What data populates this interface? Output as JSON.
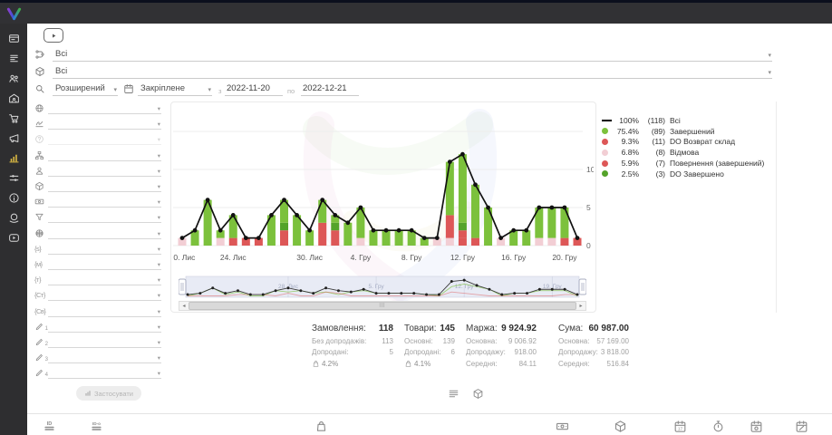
{
  "colors": {
    "green": "#7cc13c",
    "dark_green": "#54a32a",
    "red": "#dd5757",
    "pink": "#f2ced4",
    "line": "#000000",
    "sidebar_active": "#d9b843",
    "navigator_bg": "#e8ebf5"
  },
  "sidebar": {
    "items": [
      {
        "name": "dashboard",
        "icon": "browser-card",
        "active": false
      },
      {
        "name": "orders",
        "icon": "order-list",
        "active": false
      },
      {
        "name": "customers",
        "icon": "users",
        "active": false
      },
      {
        "name": "warehouse",
        "icon": "warehouse",
        "active": false
      },
      {
        "name": "purchases",
        "icon": "trolley",
        "active": false
      },
      {
        "name": "marketing",
        "icon": "megaphone",
        "active": false
      },
      {
        "name": "statistics",
        "icon": "stats",
        "active": true
      },
      {
        "name": "settings",
        "icon": "sliders",
        "active": false
      },
      {
        "name": "info",
        "icon": "info",
        "active": false
      },
      {
        "name": "network",
        "icon": "globe-hand",
        "active": false
      },
      {
        "name": "tutorials",
        "icon": "video",
        "active": false
      }
    ]
  },
  "toolbar": {
    "filters": [
      {
        "icon": "flow",
        "value": "Всі"
      },
      {
        "icon": "cube",
        "value": "Всі"
      }
    ],
    "search_mode": {
      "icon": "search",
      "value": "Розширений"
    },
    "period": {
      "icon": "calendar",
      "value": "Закріплене"
    },
    "date_from_label": "з",
    "date_from": "2022-11-20",
    "date_to_label": "по",
    "date_to": "2022-12-21"
  },
  "filter_panel": {
    "rows": [
      {
        "icon": "globe"
      },
      {
        "icon": "signature"
      },
      {
        "icon": "question",
        "disabled": true
      },
      {
        "icon": "sitemap"
      },
      {
        "icon": "person"
      },
      {
        "icon": "cube"
      },
      {
        "icon": "banknote"
      },
      {
        "icon": "funnel"
      },
      {
        "icon": "globe-grid"
      },
      {
        "glyph": "{s}"
      },
      {
        "glyph": "{м}"
      },
      {
        "glyph": "{т}"
      },
      {
        "glyph": "{Ст}"
      },
      {
        "glyph": "{Св}"
      },
      {
        "icon": "pencil",
        "sub": "1"
      },
      {
        "icon": "pencil",
        "sub": "2"
      },
      {
        "icon": "pencil",
        "sub": "3"
      },
      {
        "icon": "pencil",
        "sub": "4"
      }
    ],
    "apply_label": "Застосувати"
  },
  "chart_data": {
    "type": "line+bar-stacked (stock chart with navigator)",
    "x_range": [
      "2022-11-20",
      "2022-12-21"
    ],
    "dates": [
      "2022-11-20",
      "2022-11-21",
      "2022-11-22",
      "2022-11-23",
      "2022-11-24",
      "2022-11-25",
      "2022-11-26",
      "2022-11-27",
      "2022-11-28",
      "2022-11-29",
      "2022-11-30",
      "2022-12-01",
      "2022-12-02",
      "2022-12-03",
      "2022-12-04",
      "2022-12-05",
      "2022-12-06",
      "2022-12-07",
      "2022-12-08",
      "2022-12-09",
      "2022-12-10",
      "2022-12-11",
      "2022-12-12",
      "2022-12-13",
      "2022-12-14",
      "2022-12-15",
      "2022-12-16",
      "2022-12-17",
      "2022-12-18",
      "2022-12-19",
      "2022-12-20",
      "2022-12-21"
    ],
    "series": [
      {
        "name": "Всі",
        "type": "line",
        "color": "#000000",
        "values": [
          1,
          2,
          6,
          2,
          4,
          1,
          1,
          4,
          6,
          4,
          2,
          6,
          4,
          3,
          5,
          2,
          2,
          2,
          2,
          1,
          1,
          11,
          12,
          8,
          5,
          1,
          2,
          2,
          5,
          5,
          5,
          1
        ]
      },
      {
        "name": "Завершений",
        "type": "bar",
        "color": "#7cc13c",
        "values": [
          0,
          2,
          6,
          1,
          3,
          0,
          0,
          4,
          3,
          4,
          2,
          3,
          1,
          3,
          4,
          2,
          2,
          2,
          2,
          1,
          0,
          7,
          9,
          7,
          5,
          0,
          2,
          2,
          4,
          4,
          4,
          0
        ]
      },
      {
        "name": "DO Возврат склад",
        "type": "bar",
        "color": "#dd5757",
        "values": [
          0,
          0,
          0,
          0,
          0,
          1,
          0,
          0,
          2,
          0,
          0,
          3,
          0,
          0,
          0,
          0,
          0,
          0,
          0,
          0,
          0,
          3,
          1,
          1,
          0,
          0,
          0,
          0,
          0,
          0,
          0,
          0
        ]
      },
      {
        "name": "Відмова",
        "type": "bar",
        "color": "#f2ced4",
        "values": [
          1,
          0,
          0,
          1,
          0,
          0,
          0,
          0,
          0,
          0,
          0,
          0,
          0,
          0,
          1,
          0,
          0,
          0,
          0,
          0,
          1,
          1,
          0,
          0,
          0,
          1,
          0,
          0,
          1,
          1,
          0,
          0
        ]
      },
      {
        "name": "Повернення (завершений)",
        "type": "bar",
        "color": "#dd5757",
        "values": [
          0,
          0,
          0,
          0,
          1,
          0,
          1,
          0,
          0,
          0,
          0,
          0,
          2,
          0,
          0,
          0,
          0,
          0,
          0,
          0,
          0,
          0,
          1,
          0,
          0,
          0,
          0,
          0,
          0,
          0,
          1,
          1
        ]
      },
      {
        "name": "DO Завершено",
        "type": "bar",
        "color": "#54a32a",
        "values": [
          0,
          0,
          0,
          0,
          0,
          0,
          0,
          0,
          1,
          0,
          0,
          0,
          1,
          0,
          0,
          0,
          0,
          0,
          0,
          0,
          0,
          0,
          1,
          0,
          0,
          0,
          0,
          0,
          0,
          0,
          0,
          0
        ]
      }
    ],
    "stack_order_bottom_to_top": [
      "Відмова",
      "Повернення (завершений)",
      "DO Возврат склад",
      "DO Завершено",
      "Завершений"
    ],
    "ylim": [
      0,
      15
    ],
    "yticks": [
      0,
      5,
      10
    ],
    "y_axis_side": "right",
    "grid": true,
    "xticks": [
      {
        "i": 0,
        "label": "20. Лис"
      },
      {
        "i": 4,
        "label": "24. Лис"
      },
      {
        "i": 10,
        "label": "30. Лис"
      },
      {
        "i": 14,
        "label": "4. Гру"
      },
      {
        "i": 18,
        "label": "8. Гру"
      },
      {
        "i": 22,
        "label": "12. Гру"
      },
      {
        "i": 26,
        "label": "16. Гру"
      },
      {
        "i": 30,
        "label": "20. Гру"
      }
    ],
    "navigator": {
      "labels": [
        {
          "i": 8,
          "label": "28. Лис"
        },
        {
          "i": 15,
          "label": "5. Гру"
        },
        {
          "i": 22,
          "label": "12. Гру"
        },
        {
          "i": 29,
          "label": "19. Гру"
        }
      ]
    }
  },
  "legend": {
    "items": [
      {
        "pct": "100%",
        "count": "(118)",
        "label": "Всі",
        "swatch": "line",
        "color": "#000000"
      },
      {
        "pct": "75.4%",
        "count": "(89)",
        "label": "Завершений",
        "swatch": "dot",
        "color": "#7cc13c"
      },
      {
        "pct": "9.3%",
        "count": "(11)",
        "label": "DO Возврат склад",
        "swatch": "dot",
        "color": "#dd5757"
      },
      {
        "pct": "6.8%",
        "count": "(8)",
        "label": "Відмова",
        "swatch": "dot",
        "color": "#f2ced4"
      },
      {
        "pct": "5.9%",
        "count": "(7)",
        "label": "Повернення (завершений)",
        "swatch": "dot",
        "color": "#dd5757"
      },
      {
        "pct": "2.5%",
        "count": "(3)",
        "label": "DO Завершено",
        "swatch": "dot",
        "color": "#54a32a"
      }
    ]
  },
  "summary": {
    "columns": [
      {
        "name": "orders",
        "title": "Замовлення:",
        "value": "118",
        "rows": [
          {
            "label": "Без допродажів:",
            "value": "113"
          },
          {
            "label": "Допродані:",
            "value": "5"
          }
        ],
        "share": {
          "icon": "bag",
          "value": "4.2%"
        }
      },
      {
        "name": "items",
        "title": "Товари:",
        "value": "145",
        "rows": [
          {
            "label": "Основні:",
            "value": "139"
          },
          {
            "label": "Допродані:",
            "value": "6"
          }
        ],
        "share": {
          "icon": "bag",
          "value": "4.1%"
        }
      },
      {
        "name": "margin",
        "title": "Маржа:",
        "value": "9 924.92",
        "rows": [
          {
            "label": "Основна:",
            "value": "9 006.92"
          },
          {
            "label": "Допродажу:",
            "value": "918.00"
          },
          {
            "label": "Середня:",
            "value": "84.11"
          }
        ]
      },
      {
        "name": "total",
        "title": "Сума:",
        "value": "60 987.00",
        "rows": [
          {
            "label": "Основна:",
            "value": "57 169.00"
          },
          {
            "label": "Допродажу:",
            "value": "3 818.00"
          },
          {
            "label": "Середня:",
            "value": "516.84"
          }
        ]
      }
    ]
  },
  "view_toggles": [
    {
      "name": "list-view",
      "icon": "list-toggle"
    },
    {
      "name": "products-view",
      "icon": "cube"
    }
  ],
  "footer": {
    "icons": [
      {
        "name": "id-column",
        "icon": "id-list"
      },
      {
        "name": "id-source-column",
        "icon": "id-badge"
      },
      {
        "name": "bag-column",
        "icon": "bag"
      },
      {
        "name": "money-column",
        "icon": "banknote"
      },
      {
        "name": "product-column",
        "icon": "cube"
      },
      {
        "name": "date-column",
        "icon": "calendar-date"
      },
      {
        "name": "time-column",
        "icon": "stopwatch"
      },
      {
        "name": "calendar-auto-column",
        "icon": "calendar-auto"
      },
      {
        "name": "calendar-edit-column",
        "icon": "calendar-edit"
      }
    ]
  }
}
